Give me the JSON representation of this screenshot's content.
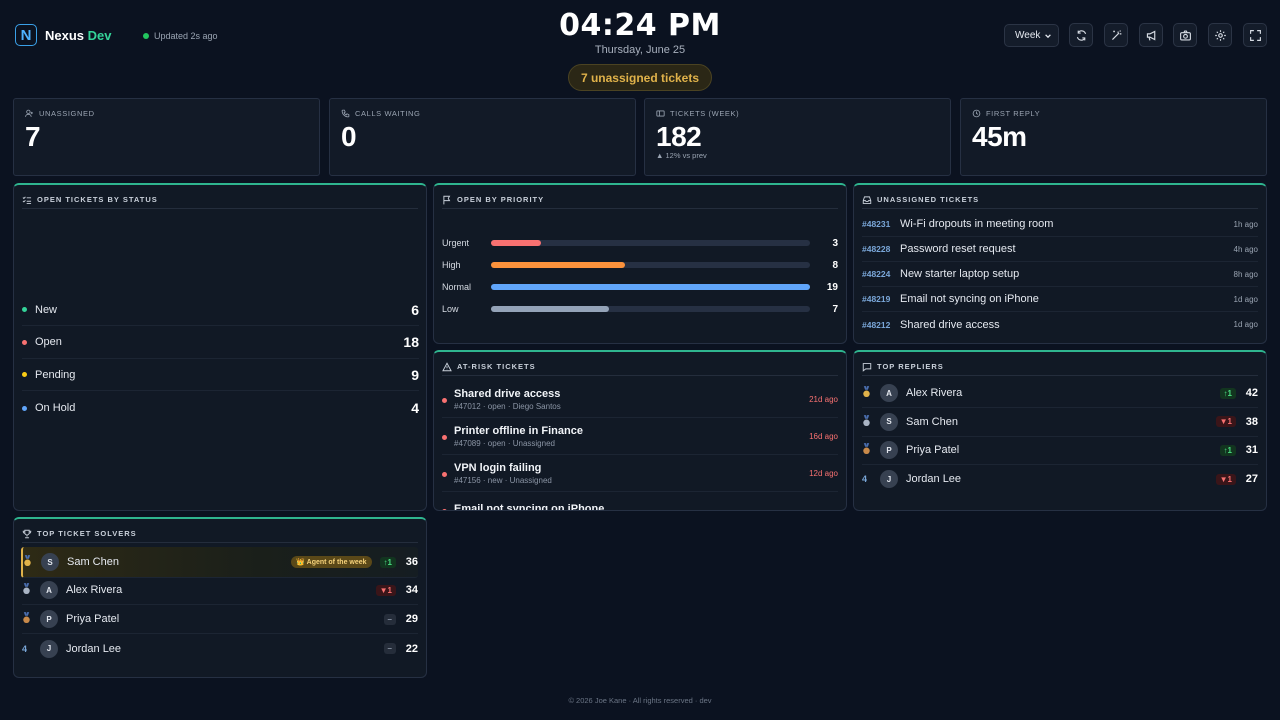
{
  "header": {
    "brand_first": "Nexus",
    "brand_second": "Dev",
    "logo_letter": "N",
    "updated": "Updated 2s ago",
    "time": "04:24 PM",
    "date": "Thursday, June 25",
    "unassigned_pill": "7 unassigned tickets",
    "range": "Week",
    "toolbar_icons": [
      "refresh-icon",
      "wand-icon",
      "megaphone-icon",
      "camera-icon",
      "settings-icon",
      "fullscreen-icon"
    ]
  },
  "stats": [
    {
      "label": "UNASSIGNED",
      "value": "7",
      "icon": "user-plus-icon"
    },
    {
      "label": "CALLS WAITING",
      "value": "0",
      "icon": "phone-icon"
    },
    {
      "label": "TICKETS (WEEK)",
      "value": "182",
      "sub": "▲ 12% vs prev",
      "icon": "ticket-icon"
    },
    {
      "label": "FIRST REPLY",
      "value": "45m",
      "icon": "clock-icon"
    }
  ],
  "status_panel": {
    "title": "OPEN TICKETS BY STATUS",
    "rows": [
      {
        "name": "New",
        "value": "6",
        "color": "#34d399"
      },
      {
        "name": "Open",
        "value": "18",
        "color": "#f87171"
      },
      {
        "name": "Pending",
        "value": "9",
        "color": "#facc15"
      },
      {
        "name": "On Hold",
        "value": "4",
        "color": "#60a5fa"
      }
    ]
  },
  "priority_panel": {
    "title": "OPEN BY PRIORITY",
    "max": 19,
    "rows": [
      {
        "name": "Urgent",
        "value": 3,
        "color": "#f87171"
      },
      {
        "name": "High",
        "value": 8,
        "color": "#fb923c"
      },
      {
        "name": "Normal",
        "value": 19,
        "color": "#60a5fa"
      },
      {
        "name": "Low",
        "value": 7,
        "color": "#94a3b8"
      }
    ]
  },
  "unassigned_panel": {
    "title": "UNASSIGNED TICKETS",
    "rows": [
      {
        "id": "#48231",
        "title": "Wi-Fi dropouts in meeting room",
        "age": "1h ago"
      },
      {
        "id": "#48228",
        "title": "Password reset request",
        "age": "4h ago"
      },
      {
        "id": "#48224",
        "title": "New starter laptop setup",
        "age": "8h ago"
      },
      {
        "id": "#48219",
        "title": "Email not syncing on iPhone",
        "age": "1d ago"
      },
      {
        "id": "#48212",
        "title": "Shared drive access",
        "age": "1d ago"
      }
    ]
  },
  "risk_panel": {
    "title": "AT-RISK TICKETS",
    "rows": [
      {
        "title": "Shared drive access",
        "meta": "#47012 · open · Diego Santos",
        "age": "21d ago"
      },
      {
        "title": "Printer offline in Finance",
        "meta": "#47089 · open · Unassigned",
        "age": "16d ago"
      },
      {
        "title": "VPN login failing",
        "meta": "#47156 · new · Unassigned",
        "age": "12d ago"
      },
      {
        "title": "Email not syncing on iPhone",
        "meta": "",
        "age": ""
      }
    ]
  },
  "repliers_panel": {
    "title": "TOP REPLIERS",
    "rows": [
      {
        "rank": "gold-medal-icon",
        "initial": "A",
        "name": "Alex Rivera",
        "delta": "↑1",
        "dir": "up",
        "value": "42"
      },
      {
        "rank": "silver-medal-icon",
        "initial": "S",
        "name": "Sam Chen",
        "delta": "▼1",
        "dir": "down",
        "value": "38"
      },
      {
        "rank": "bronze-medal-icon",
        "initial": "P",
        "name": "Priya Patel",
        "delta": "↑1",
        "dir": "up",
        "value": "31"
      },
      {
        "rank": "4",
        "initial": "J",
        "name": "Jordan Lee",
        "delta": "▼1",
        "dir": "down",
        "value": "27"
      }
    ]
  },
  "solvers_panel": {
    "title": "TOP TICKET SOLVERS",
    "badge": "👑 Agent of the week",
    "rows": [
      {
        "rank": "gold-medal-icon",
        "initial": "S",
        "name": "Sam Chen",
        "delta": "↑1",
        "dir": "up",
        "value": "36"
      },
      {
        "rank": "silver-medal-icon",
        "initial": "A",
        "name": "Alex Rivera",
        "delta": "▼1",
        "dir": "down",
        "value": "34"
      },
      {
        "rank": "bronze-medal-icon",
        "initial": "P",
        "name": "Priya Patel",
        "delta": "–",
        "dir": "flat",
        "value": "29"
      },
      {
        "rank": "4",
        "initial": "J",
        "name": "Jordan Lee",
        "delta": "–",
        "dir": "flat",
        "value": "22"
      }
    ]
  },
  "footer": "© 2026 Joe Kane · All rights reserved · dev",
  "colors": {
    "accent": "#2fb58f",
    "background": "#0b1220",
    "warning": "#e0b24a"
  }
}
